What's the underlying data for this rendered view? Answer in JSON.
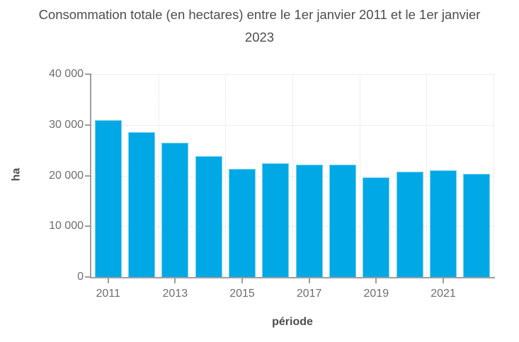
{
  "chart_data": {
    "type": "bar",
    "title": "Consommation totale (en hectares) entre le 1er janvier 2011 et le 1er janvier 2023",
    "title_lines": [
      "Consommation totale (en hectares) entre le 1er janvier 2011 et le 1er janvier",
      "2023"
    ],
    "xlabel": "période",
    "ylabel": "ha",
    "categories": [
      "2011",
      "2012",
      "2013",
      "2014",
      "2015",
      "2016",
      "2017",
      "2018",
      "2019",
      "2020",
      "2021",
      "2022"
    ],
    "values": [
      31000,
      28600,
      26500,
      23800,
      21300,
      22500,
      22100,
      22100,
      19600,
      20700,
      21100,
      20400
    ],
    "ylim": [
      0,
      40000
    ],
    "y_ticks": [
      {
        "label": "0",
        "value": 0
      },
      {
        "label": "10 000",
        "value": 10000
      },
      {
        "label": "20 000",
        "value": 20000
      },
      {
        "label": "30 000",
        "value": 30000
      },
      {
        "label": "40 000",
        "value": 40000
      }
    ],
    "x_ticks": [
      {
        "label": "2011",
        "slot": 0
      },
      {
        "label": "2013",
        "slot": 2
      },
      {
        "label": "2015",
        "slot": 4
      },
      {
        "label": "2017",
        "slot": 6
      },
      {
        "label": "2019",
        "slot": 8
      },
      {
        "label": "2021",
        "slot": 10
      }
    ],
    "grid": true,
    "legend": "none",
    "bar_color": "#00a9e6",
    "bar_edge_color": "#79d0f0",
    "title_color": "#4d4d4d",
    "tick_label_color": "#6e6e6e",
    "axis_line_color": "#9e9e9e",
    "gridline_color": "#dedede",
    "background_color": "#ffffff"
  }
}
